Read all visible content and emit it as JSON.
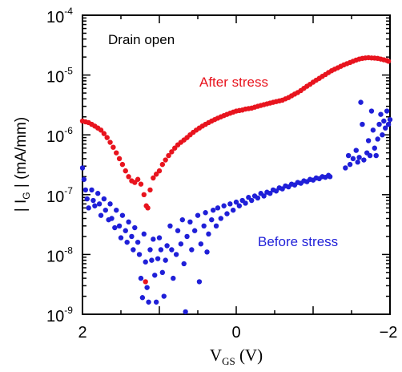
{
  "chart_data": {
    "type": "scatter",
    "title": "",
    "y_scale": "log",
    "xlim": [
      2,
      -2
    ],
    "ylim": [
      1e-09,
      0.0001
    ],
    "x_ticks": [
      "2",
      "0",
      "−2"
    ],
    "y_ticks": [
      {
        "base": "10",
        "exp": "-4"
      },
      {
        "base": "10",
        "exp": "-5"
      },
      {
        "base": "10",
        "exp": "-6"
      },
      {
        "base": "10",
        "exp": "-7"
      },
      {
        "base": "10",
        "exp": "-8"
      },
      {
        "base": "10",
        "exp": "-9"
      }
    ],
    "xlabel": {
      "main": "V",
      "sub": "GS",
      "unit": " (V)"
    },
    "ylabel": {
      "pre": "| I",
      "sub": "G",
      "post": " | (mA/mm)"
    },
    "annotations": {
      "condition": "Drain open",
      "after": "After stress",
      "before": "Before stress"
    },
    "series": [
      {
        "name": "After stress",
        "color": "#e8141e",
        "points": [
          [
            2.0,
            1.7e-06
          ],
          [
            1.96,
            1.65e-06
          ],
          [
            1.92,
            1.6e-06
          ],
          [
            1.88,
            1.5e-06
          ],
          [
            1.84,
            1.4e-06
          ],
          [
            1.8,
            1.3e-06
          ],
          [
            1.76,
            1.2e-06
          ],
          [
            1.72,
            1.05e-06
          ],
          [
            1.68,
            9e-07
          ],
          [
            1.64,
            7.5e-07
          ],
          [
            1.6,
            6.2e-07
          ],
          [
            1.56,
            5e-07
          ],
          [
            1.52,
            4e-07
          ],
          [
            1.48,
            3.2e-07
          ],
          [
            1.44,
            2.5e-07
          ],
          [
            1.4,
            2e-07
          ],
          [
            1.36,
            1.7e-07
          ],
          [
            1.32,
            1.6e-07
          ],
          [
            1.28,
            1.8e-07
          ],
          [
            1.24,
            1.5e-07
          ],
          [
            1.2,
            1e-07
          ],
          [
            1.17,
            6.5e-08
          ],
          [
            1.15,
            6e-08
          ],
          [
            1.12,
            1.2e-07
          ],
          [
            1.08,
            1.9e-07
          ],
          [
            1.04,
            2.2e-07
          ],
          [
            1.0,
            2.5e-07
          ],
          [
            0.96,
            3.2e-07
          ],
          [
            0.92,
            3.8e-07
          ],
          [
            0.88,
            4.5e-07
          ],
          [
            0.84,
            5.2e-07
          ],
          [
            0.8,
            6e-07
          ],
          [
            0.76,
            6.8e-07
          ],
          [
            0.72,
            7.5e-07
          ],
          [
            0.68,
            8.2e-07
          ],
          [
            0.64,
            9e-07
          ],
          [
            0.6,
            1e-06
          ],
          [
            0.56,
            1.1e-06
          ],
          [
            0.52,
            1.2e-06
          ],
          [
            0.48,
            1.3e-06
          ],
          [
            0.44,
            1.4e-06
          ],
          [
            0.4,
            1.5e-06
          ],
          [
            0.36,
            1.6e-06
          ],
          [
            0.32,
            1.7e-06
          ],
          [
            0.28,
            1.8e-06
          ],
          [
            0.24,
            1.9e-06
          ],
          [
            0.2,
            2e-06
          ],
          [
            0.16,
            2.1e-06
          ],
          [
            0.12,
            2.2e-06
          ],
          [
            0.08,
            2.3e-06
          ],
          [
            0.04,
            2.4e-06
          ],
          [
            0.0,
            2.5e-06
          ],
          [
            -0.04,
            2.55e-06
          ],
          [
            -0.08,
            2.6e-06
          ],
          [
            -0.12,
            2.7e-06
          ],
          [
            -0.16,
            2.75e-06
          ],
          [
            -0.2,
            2.8e-06
          ],
          [
            -0.24,
            2.9e-06
          ],
          [
            -0.28,
            3e-06
          ],
          [
            -0.32,
            3.1e-06
          ],
          [
            -0.36,
            3.2e-06
          ],
          [
            -0.4,
            3.3e-06
          ],
          [
            -0.44,
            3.4e-06
          ],
          [
            -0.48,
            3.5e-06
          ],
          [
            -0.52,
            3.6e-06
          ],
          [
            -0.56,
            3.7e-06
          ],
          [
            -0.6,
            3.8e-06
          ],
          [
            -0.64,
            4e-06
          ],
          [
            -0.68,
            4.2e-06
          ],
          [
            -0.72,
            4.5e-06
          ],
          [
            -0.76,
            4.8e-06
          ],
          [
            -0.8,
            5.1e-06
          ],
          [
            -0.84,
            5.5e-06
          ],
          [
            -0.88,
            6e-06
          ],
          [
            -0.92,
            6.5e-06
          ],
          [
            -0.96,
            7e-06
          ],
          [
            -1.0,
            7.6e-06
          ],
          [
            -1.04,
            8.2e-06
          ],
          [
            -1.08,
            8.8e-06
          ],
          [
            -1.12,
            9.5e-06
          ],
          [
            -1.16,
            1.02e-05
          ],
          [
            -1.2,
            1.1e-05
          ],
          [
            -1.24,
            1.18e-05
          ],
          [
            -1.28,
            1.25e-05
          ],
          [
            -1.32,
            1.32e-05
          ],
          [
            -1.36,
            1.4e-05
          ],
          [
            -1.4,
            1.48e-05
          ],
          [
            -1.44,
            1.55e-05
          ],
          [
            -1.48,
            1.62e-05
          ],
          [
            -1.52,
            1.7e-05
          ],
          [
            -1.56,
            1.78e-05
          ],
          [
            -1.6,
            1.85e-05
          ],
          [
            -1.64,
            1.9e-05
          ],
          [
            -1.68,
            1.93e-05
          ],
          [
            -1.72,
            1.95e-05
          ],
          [
            -1.76,
            1.93e-05
          ],
          [
            -1.8,
            1.92e-05
          ],
          [
            -1.84,
            1.9e-05
          ],
          [
            -1.88,
            1.85e-05
          ],
          [
            -1.92,
            1.8e-05
          ],
          [
            -1.96,
            1.75e-05
          ],
          [
            -1.98,
            1.7e-05
          ],
          [
            1.18,
            3.5e-09
          ]
        ]
      },
      {
        "name": "Before stress",
        "color": "#1f1fd8",
        "points": [
          [
            2.0,
            2.8e-07
          ],
          [
            1.98,
            1.8e-07
          ],
          [
            1.96,
            1.2e-07
          ],
          [
            1.94,
            8.5e-08
          ],
          [
            1.92,
            6e-08
          ],
          [
            1.88,
            1.2e-07
          ],
          [
            1.86,
            8e-08
          ],
          [
            1.84,
            6.5e-08
          ],
          [
            1.8,
            1.05e-07
          ],
          [
            1.78,
            7e-08
          ],
          [
            1.76,
            4.5e-08
          ],
          [
            1.72,
            8.5e-08
          ],
          [
            1.7,
            5.5e-08
          ],
          [
            1.66,
            3.8e-08
          ],
          [
            1.64,
            7e-08
          ],
          [
            1.62,
            4e-08
          ],
          [
            1.58,
            2.8e-08
          ],
          [
            1.56,
            5.5e-08
          ],
          [
            1.52,
            3e-08
          ],
          [
            1.5,
            1.9e-08
          ],
          [
            1.48,
            4.5e-08
          ],
          [
            1.44,
            2.5e-08
          ],
          [
            1.42,
            1.6e-08
          ],
          [
            1.4,
            3.5e-08
          ],
          [
            1.36,
            2e-08
          ],
          [
            1.34,
            1.2e-08
          ],
          [
            1.32,
            2.8e-08
          ],
          [
            1.28,
            1.6e-08
          ],
          [
            1.26,
            1e-08
          ],
          [
            1.24,
            4e-09
          ],
          [
            1.22,
            1.9e-09
          ],
          [
            1.2,
            2.2e-08
          ],
          [
            1.18,
            7.5e-09
          ],
          [
            1.16,
            2.8e-09
          ],
          [
            1.14,
            1.6e-09
          ],
          [
            1.12,
            1.2e-08
          ],
          [
            1.1,
            8e-09
          ],
          [
            1.08,
            1.8e-08
          ],
          [
            1.06,
            4.5e-09
          ],
          [
            1.04,
            1.6e-09
          ],
          [
            1.02,
            8.5e-09
          ],
          [
            1.0,
            1.9e-08
          ],
          [
            0.98,
            1.2e-08
          ],
          [
            0.96,
            5e-09
          ],
          [
            0.94,
            2e-09
          ],
          [
            0.92,
            8e-09
          ],
          [
            0.9,
            1.4e-08
          ],
          [
            0.86,
            3e-08
          ],
          [
            0.84,
            1.2e-08
          ],
          [
            0.82,
            4e-09
          ],
          [
            0.78,
            1e-08
          ],
          [
            0.76,
            2.5e-08
          ],
          [
            0.72,
            1.5e-08
          ],
          [
            0.7,
            3.8e-08
          ],
          [
            0.68,
            7e-09
          ],
          [
            0.66,
            1.1e-09
          ],
          [
            0.64,
            2e-08
          ],
          [
            0.6,
            3.5e-08
          ],
          [
            0.58,
            1.2e-08
          ],
          [
            0.54,
            2.5e-08
          ],
          [
            0.5,
            4.5e-08
          ],
          [
            0.48,
            3.5e-09
          ],
          [
            0.46,
            1.5e-08
          ],
          [
            0.42,
            3e-08
          ],
          [
            0.4,
            5e-08
          ],
          [
            0.38,
            1.1e-08
          ],
          [
            0.36,
            2.2e-08
          ],
          [
            0.32,
            3.8e-08
          ],
          [
            0.3,
            5.5e-08
          ],
          [
            0.26,
            3e-08
          ],
          [
            0.24,
            6e-08
          ],
          [
            0.2,
            4e-08
          ],
          [
            0.16,
            6.5e-08
          ],
          [
            0.12,
            4.8e-08
          ],
          [
            0.08,
            7e-08
          ],
          [
            0.04,
            5.5e-08
          ],
          [
            0.0,
            7.5e-08
          ],
          [
            -0.04,
            6.5e-08
          ],
          [
            -0.08,
            8e-08
          ],
          [
            -0.12,
            7.2e-08
          ],
          [
            -0.16,
            9e-08
          ],
          [
            -0.2,
            8e-08
          ],
          [
            -0.24,
            9.5e-08
          ],
          [
            -0.28,
            8.8e-08
          ],
          [
            -0.32,
            1.05e-07
          ],
          [
            -0.36,
            9.5e-08
          ],
          [
            -0.4,
            1.1e-07
          ],
          [
            -0.44,
            1.05e-07
          ],
          [
            -0.48,
            1.2e-07
          ],
          [
            -0.52,
            1.15e-07
          ],
          [
            -0.56,
            1.3e-07
          ],
          [
            -0.6,
            1.25e-07
          ],
          [
            -0.64,
            1.4e-07
          ],
          [
            -0.68,
            1.35e-07
          ],
          [
            -0.72,
            1.5e-07
          ],
          [
            -0.76,
            1.45e-07
          ],
          [
            -0.8,
            1.6e-07
          ],
          [
            -0.84,
            1.55e-07
          ],
          [
            -0.88,
            1.7e-07
          ],
          [
            -0.92,
            1.65e-07
          ],
          [
            -0.96,
            1.8e-07
          ],
          [
            -1.0,
            1.75e-07
          ],
          [
            -1.04,
            1.9e-07
          ],
          [
            -1.08,
            1.85e-07
          ],
          [
            -1.12,
            2e-07
          ],
          [
            -1.16,
            1.95e-07
          ],
          [
            -1.2,
            2.1e-07
          ],
          [
            -1.22,
            2e-07
          ],
          [
            -1.42,
            2.8e-07
          ],
          [
            -1.46,
            4.5e-07
          ],
          [
            -1.48,
            3.2e-07
          ],
          [
            -1.52,
            4e-07
          ],
          [
            -1.56,
            5.5e-07
          ],
          [
            -1.58,
            3.5e-07
          ],
          [
            -1.6,
            4.2e-07
          ],
          [
            -1.62,
            3.5e-06
          ],
          [
            -1.64,
            1.5e-06
          ],
          [
            -1.66,
            3.8e-07
          ],
          [
            -1.7,
            5e-07
          ],
          [
            -1.72,
            8e-07
          ],
          [
            -1.74,
            4.5e-07
          ],
          [
            -1.76,
            2.5e-06
          ],
          [
            -1.78,
            1.2e-06
          ],
          [
            -1.8,
            6e-07
          ],
          [
            -1.82,
            4.5e-07
          ],
          [
            -1.84,
            8.5e-07
          ],
          [
            -1.86,
            1.5e-06
          ],
          [
            -1.88,
            2.2e-06
          ],
          [
            -1.9,
            1e-06
          ],
          [
            -1.92,
            1.7e-06
          ],
          [
            -1.94,
            1.3e-06
          ],
          [
            -1.96,
            2.5e-06
          ],
          [
            -1.98,
            1.5e-06
          ],
          [
            -2.0,
            1.8e-06
          ]
        ]
      }
    ]
  }
}
